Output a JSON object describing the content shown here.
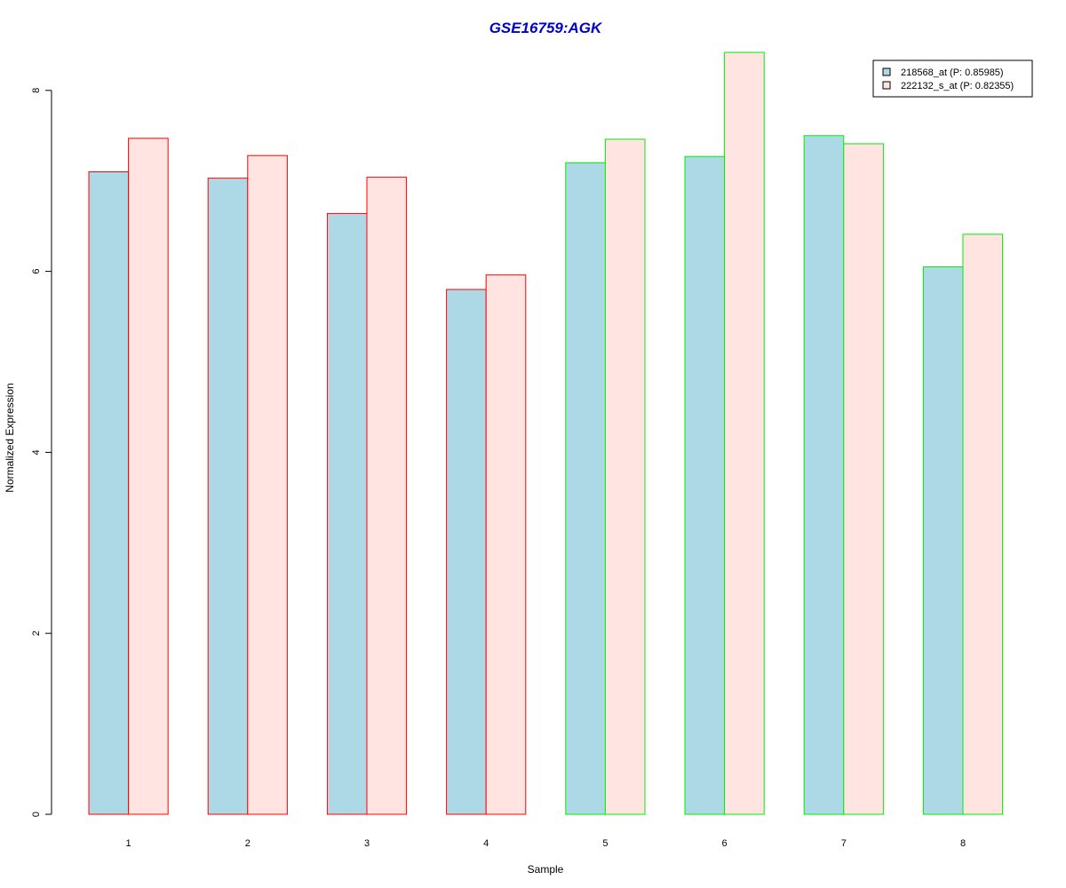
{
  "chart_data": {
    "type": "bar",
    "title": "GSE16759:AGK",
    "xlabel": "Sample",
    "ylabel": "Normalized Expression",
    "categories": [
      "1",
      "2",
      "3",
      "4",
      "5",
      "6",
      "7",
      "8"
    ],
    "series": [
      {
        "name": "218568_at (P: 0.85985)",
        "values": [
          7.1,
          7.03,
          6.64,
          5.8,
          7.2,
          7.27,
          7.5,
          6.05
        ],
        "fill": "#add8e6"
      },
      {
        "name": "222132_s_at (P: 0.82355)",
        "values": [
          7.47,
          7.28,
          7.04,
          5.96,
          7.46,
          8.42,
          7.41,
          6.41
        ],
        "fill": "#ffe4e1"
      }
    ],
    "group_border_colors": [
      "#ff0000",
      "#ff0000",
      "#ff0000",
      "#ff0000",
      "#00ee00",
      "#00ee00",
      "#00ee00",
      "#00ee00"
    ],
    "yticks": [
      0,
      2,
      4,
      6,
      8
    ],
    "ylim": [
      0,
      8.42
    ],
    "title_color": "#0000cd",
    "grid": false,
    "legend_position": "top-right"
  }
}
